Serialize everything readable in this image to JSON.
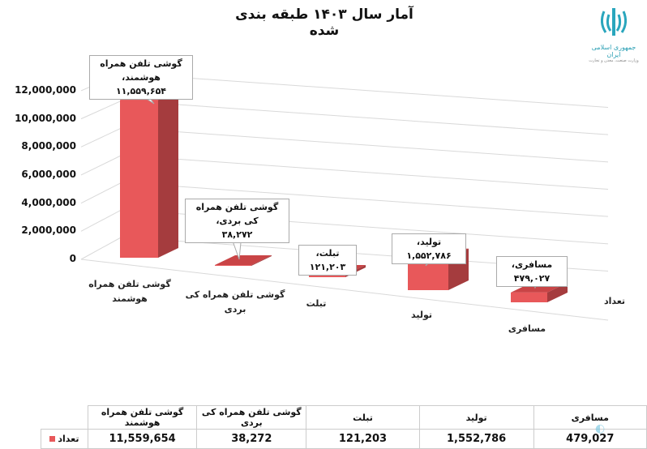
{
  "header": {
    "title": "آمار سال ۱۴۰۳ طبقه بندی شده",
    "logo_text": [
      "جمهوری اسلامی ایران",
      "وزارت صنعت، معدن و تجارت"
    ]
  },
  "chart_data": {
    "type": "bar",
    "title": "آمار سال ۱۴۰۳ طبقه بندی شده",
    "categories": [
      "گوشی تلفن همراه هوشمند",
      "گوشی تلفن همراه کی بردی",
      "تبلت",
      "تولید",
      "مسافری"
    ],
    "series": [
      {
        "name": "تعداد",
        "values": [
          11559654,
          38272,
          121203,
          1552786,
          479027
        ],
        "color": "#e8585a"
      }
    ],
    "data_labels": [
      "گوشی تلفن همراه هوشمند، ۱۱,۵۵۹,۶۵۴",
      "گوشی تلفن همراه کی بردی، ۳۸,۲۷۲",
      "تبلت، ۱۲۱,۲۰۳",
      "تولید، ۱,۵۵۲,۷۸۶",
      "مسافری، ۴۷۹,۰۲۷"
    ],
    "data_label_lines": [
      [
        "گوشی تلفن همراه هوشمند،",
        "۱۱,۵۵۹,۶۵۴"
      ],
      [
        "گوشی تلفن همراه کی بردی،",
        "۳۸,۲۷۲"
      ],
      [
        "تبلت، ۱۲۱,۲۰۳"
      ],
      [
        "تولید، ۱,۵۵۲,۷۸۶"
      ],
      [
        "مسافری، ۴۷۹,۰۲۷"
      ]
    ],
    "category_label_lines": [
      [
        "گوشی تلفن همراه",
        "هوشمند"
      ],
      [
        "گوشی تلفن همراه کی",
        "بردی"
      ],
      [
        "تبلت"
      ],
      [
        "تولید"
      ],
      [
        "مسافری"
      ]
    ],
    "yticks": [
      "0",
      "2,000,000",
      "4,000,000",
      "6,000,000",
      "8,000,000",
      "10,000,000",
      "12,000,000"
    ],
    "ylim": [
      0,
      12000000
    ],
    "series_axis_label": "تعداد",
    "grid": true,
    "style": "3d-column"
  },
  "table": {
    "headers": [
      "گوشی تلفن همراه هوشمند",
      "گوشی تلفن همراه کی بردی",
      "تبلت",
      "تولید",
      "مسافری"
    ],
    "row_label": "تعداد",
    "values": [
      "11,559,654",
      "38,272",
      "121,203",
      "1,552,786",
      "479,027"
    ]
  }
}
